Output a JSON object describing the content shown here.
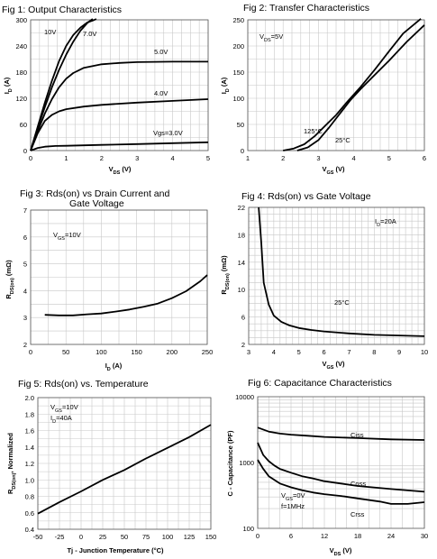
{
  "chart_data": [
    {
      "type": "line",
      "title": "Fig 1: Output Characteristics",
      "xlabel": "V_DS (V)",
      "ylabel": "I_D (A)",
      "xlim": [
        0,
        5
      ],
      "ylim": [
        0,
        300
      ],
      "xticks": [
        "0",
        "1",
        "2",
        "3",
        "4",
        "5"
      ],
      "yticks": [
        "0",
        "60",
        "120",
        "180",
        "240",
        "300"
      ],
      "grid": true,
      "series": [
        {
          "name": "10V",
          "x": [
            0,
            0.2,
            0.4,
            0.6,
            0.8,
            1.0,
            1.2,
            1.4,
            1.6,
            1.8,
            1.85
          ],
          "y": [
            0,
            55,
            110,
            160,
            205,
            240,
            265,
            282,
            294,
            300,
            302
          ]
        },
        {
          "name": "7.0V",
          "x": [
            0,
            0.2,
            0.4,
            0.6,
            0.8,
            1.0,
            1.2,
            1.4,
            1.6,
            1.75
          ],
          "y": [
            0,
            52,
            100,
            145,
            185,
            220,
            250,
            275,
            293,
            302
          ]
        },
        {
          "name": "5.0V",
          "x": [
            0,
            0.2,
            0.4,
            0.6,
            0.8,
            1.0,
            1.2,
            1.5,
            2.0,
            2.5,
            3.0,
            4.0,
            5.0
          ],
          "y": [
            0,
            45,
            85,
            118,
            145,
            165,
            178,
            190,
            198,
            201,
            203,
            204,
            204
          ]
        },
        {
          "name": "4.0V",
          "x": [
            0,
            0.2,
            0.4,
            0.6,
            0.8,
            1.0,
            1.5,
            2.0,
            3.0,
            4.0,
            5.0
          ],
          "y": [
            0,
            40,
            68,
            82,
            90,
            95,
            101,
            105,
            110,
            114,
            118
          ]
        },
        {
          "name": "Vgs=3.0V",
          "x": [
            0,
            0.2,
            0.4,
            0.7,
            1.0,
            2.0,
            3.0,
            4.0,
            5.0
          ],
          "y": [
            0,
            6,
            9,
            10.5,
            11,
            13,
            15,
            17,
            19
          ]
        }
      ],
      "labels": [
        "10V",
        "7.0V",
        "5.0V",
        "4.0V",
        "Vgs=3.0V"
      ]
    },
    {
      "type": "line",
      "title": "Fig 2: Transfer Characteristics",
      "xlabel": "V_GS (V)",
      "ylabel": "I_D (A)",
      "xlim": [
        1,
        6
      ],
      "ylim": [
        0,
        250
      ],
      "xticks": [
        "1",
        "2",
        "3",
        "4",
        "5",
        "6"
      ],
      "yticks": [
        "0",
        "50",
        "100",
        "150",
        "200",
        "250"
      ],
      "grid": true,
      "annotation": "V_DS=5V",
      "series": [
        {
          "name": "125°C",
          "x": [
            2.0,
            2.3,
            2.6,
            2.9,
            3.2,
            3.5,
            3.8,
            4.2,
            4.6,
            5.0,
            5.4,
            5.9
          ],
          "y": [
            0,
            4,
            12,
            28,
            48,
            68,
            92,
            122,
            155,
            190,
            224,
            252
          ]
        },
        {
          "name": "25°C",
          "x": [
            2.4,
            2.7,
            3.0,
            3.3,
            3.6,
            3.9,
            4.2,
            4.6,
            5.0,
            5.5,
            6.0
          ],
          "y": [
            0,
            6,
            20,
            44,
            70,
            96,
            118,
            145,
            172,
            208,
            240
          ]
        }
      ],
      "labels": [
        "125°C",
        "25°C"
      ]
    },
    {
      "type": "line",
      "title": "Fig 3: Rds(on) vs Drain Current and",
      "subtitle": "Gate Voltage",
      "xlabel": "I_D (A)",
      "ylabel": "R_DS(on) (mΩ)",
      "xlim": [
        0,
        250
      ],
      "ylim": [
        2,
        7
      ],
      "xticks": [
        "0",
        "50",
        "100",
        "150",
        "200",
        "250"
      ],
      "yticks": [
        "2",
        "3",
        "4",
        "5",
        "6",
        "7"
      ],
      "grid": true,
      "annotation": "V_GS=10V",
      "series": [
        {
          "name": "V_GS=10V",
          "x": [
            20,
            40,
            60,
            80,
            100,
            120,
            140,
            160,
            180,
            200,
            220,
            240,
            250
          ],
          "y": [
            3.1,
            3.08,
            3.08,
            3.12,
            3.15,
            3.22,
            3.3,
            3.4,
            3.52,
            3.72,
            3.98,
            4.35,
            4.58
          ]
        }
      ]
    },
    {
      "type": "line",
      "title": "Fig 4: Rds(on) vs Gate Voltage",
      "xlabel": "V_GS (V)",
      "ylabel": "R_DS(on) (mΩ)",
      "xlim": [
        3,
        10
      ],
      "ylim": [
        2,
        22
      ],
      "xticks": [
        "3",
        "4",
        "5",
        "6",
        "7",
        "8",
        "9",
        "10"
      ],
      "yticks": [
        "2",
        "6",
        "10",
        "14",
        "18",
        "22"
      ],
      "grid": true,
      "annotation": "I_D=20A",
      "series": [
        {
          "name": "25°C",
          "x": [
            3.4,
            3.5,
            3.6,
            3.8,
            4.0,
            4.3,
            4.6,
            5.0,
            5.5,
            6.0,
            7.0,
            8.0,
            9.0,
            10.0
          ],
          "y": [
            22,
            17,
            11,
            7.8,
            6.2,
            5.3,
            4.8,
            4.4,
            4.1,
            3.9,
            3.6,
            3.4,
            3.3,
            3.2
          ]
        }
      ],
      "labels": [
        "25°C"
      ]
    },
    {
      "type": "line",
      "title": "Fig 5: Rds(on) vs. Temperature",
      "xlabel": "Tj - Junction Temperature (°C)",
      "ylabel": "R_DS(on), Normalized",
      "xlim": [
        -50,
        150
      ],
      "ylim": [
        0.4,
        2.0
      ],
      "xticks": [
        "-50",
        "-25",
        "0",
        "25",
        "50",
        "75",
        "100",
        "125",
        "150"
      ],
      "yticks": [
        "0.4",
        "0.6",
        "0.8",
        "1.0",
        "1.2",
        "1.4",
        "1.6",
        "1.8",
        "2.0"
      ],
      "grid": true,
      "annotation": [
        "V_GS=10V",
        "I_D=40A"
      ],
      "series": [
        {
          "name": "V_GS=10V, I_D=40A",
          "x": [
            -50,
            -25,
            0,
            25,
            50,
            75,
            100,
            125,
            150
          ],
          "y": [
            0.59,
            0.73,
            0.86,
            1.0,
            1.12,
            1.26,
            1.39,
            1.52,
            1.67
          ]
        }
      ]
    },
    {
      "type": "line",
      "title": "Fig 6: Capacitance Characteristics",
      "xlabel": "V_DS (V)",
      "ylabel": "C - Capacitance (PF)",
      "xlim": [
        0,
        30
      ],
      "ylim": [
        100,
        10000
      ],
      "yscale": "log",
      "xticks": [
        "0",
        "6",
        "12",
        "18",
        "24",
        "30"
      ],
      "yticks": [
        "100",
        "1000",
        "10000"
      ],
      "grid": true,
      "annotation": [
        "V_GS=0V",
        "f=1MHz"
      ],
      "series": [
        {
          "name": "Ciss",
          "x": [
            0,
            2,
            4,
            6,
            9,
            12,
            18,
            24,
            30
          ],
          "y": [
            3400,
            2950,
            2750,
            2650,
            2550,
            2450,
            2350,
            2250,
            2200
          ]
        },
        {
          "name": "Coss",
          "x": [
            0,
            1,
            2,
            3,
            4,
            6,
            8,
            10,
            12,
            15,
            18,
            24,
            30
          ],
          "y": [
            2000,
            1300,
            1050,
            900,
            800,
            700,
            620,
            570,
            520,
            480,
            440,
            395,
            360
          ]
        },
        {
          "name": "Crss",
          "x": [
            0,
            1,
            2,
            4,
            6,
            8,
            10,
            12,
            15,
            18,
            22,
            24,
            27,
            30
          ],
          "y": [
            1100,
            800,
            620,
            480,
            420,
            380,
            350,
            330,
            310,
            285,
            255,
            235,
            235,
            250
          ]
        }
      ],
      "labels": [
        "Ciss",
        "Coss",
        "Crss"
      ]
    }
  ]
}
